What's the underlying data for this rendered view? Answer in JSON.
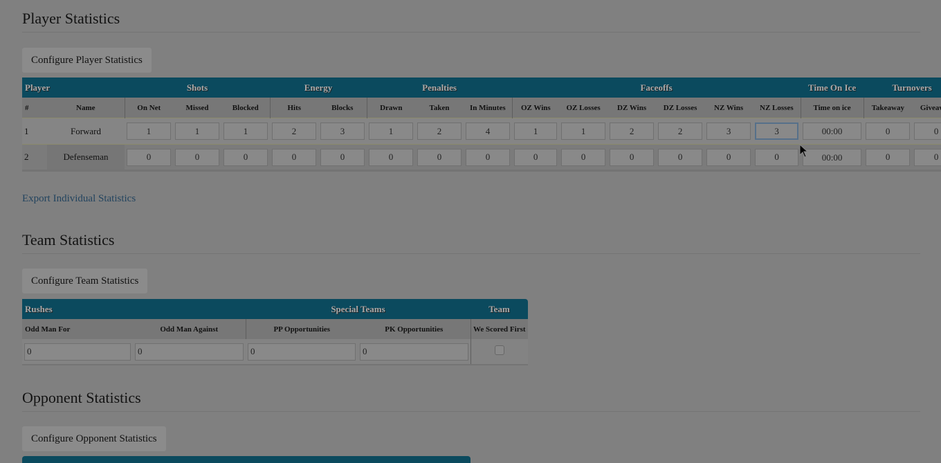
{
  "player_section": {
    "title": "Player Statistics",
    "configure_button": "Configure Player Statistics",
    "groups": [
      "Player",
      "Shots",
      "Energy",
      "Penalties",
      "Faceoffs",
      "Time On Ice",
      "Turnovers"
    ],
    "columns": [
      "#",
      "Name",
      "On Net",
      "Missed",
      "Blocked",
      "Hits",
      "Blocks",
      "Drawn",
      "Taken",
      "In Minutes",
      "OZ Wins",
      "OZ Losses",
      "DZ Wins",
      "DZ Losses",
      "NZ Wins",
      "NZ Losses",
      "Time on ice",
      "Takeaway",
      "Giveaway"
    ],
    "rows": [
      {
        "num": "1",
        "name": "Forward",
        "values": [
          "1",
          "1",
          "1",
          "2",
          "3",
          "1",
          "2",
          "4",
          "1",
          "1",
          "2",
          "2",
          "3",
          "3",
          "00:00",
          "0",
          "0"
        ]
      },
      {
        "num": "2",
        "name": "Defenseman",
        "values": [
          "0",
          "0",
          "0",
          "0",
          "0",
          "0",
          "0",
          "0",
          "0",
          "0",
          "0",
          "0",
          "0",
          "0",
          "00:00",
          "0",
          "0"
        ]
      }
    ],
    "focused_cell": "NZ Losses",
    "export_link": "Export Individual Statistics"
  },
  "team_section": {
    "title": "Team Statistics",
    "configure_button": "Configure Team Statistics",
    "groups": [
      "Rushes",
      "Special Teams",
      "Team"
    ],
    "columns": [
      "Odd Man For",
      "Odd Man Against",
      "PP Opportunities",
      "PK Opportunities",
      "We Scored First"
    ],
    "values": [
      "0",
      "0",
      "0",
      "0"
    ],
    "we_scored_first": false
  },
  "opponent_section": {
    "title": "Opponent Statistics",
    "configure_button": "Configure Opponent Statistics"
  },
  "colors": {
    "header": "#0b4a5e",
    "overlay_dim": "#808080"
  }
}
